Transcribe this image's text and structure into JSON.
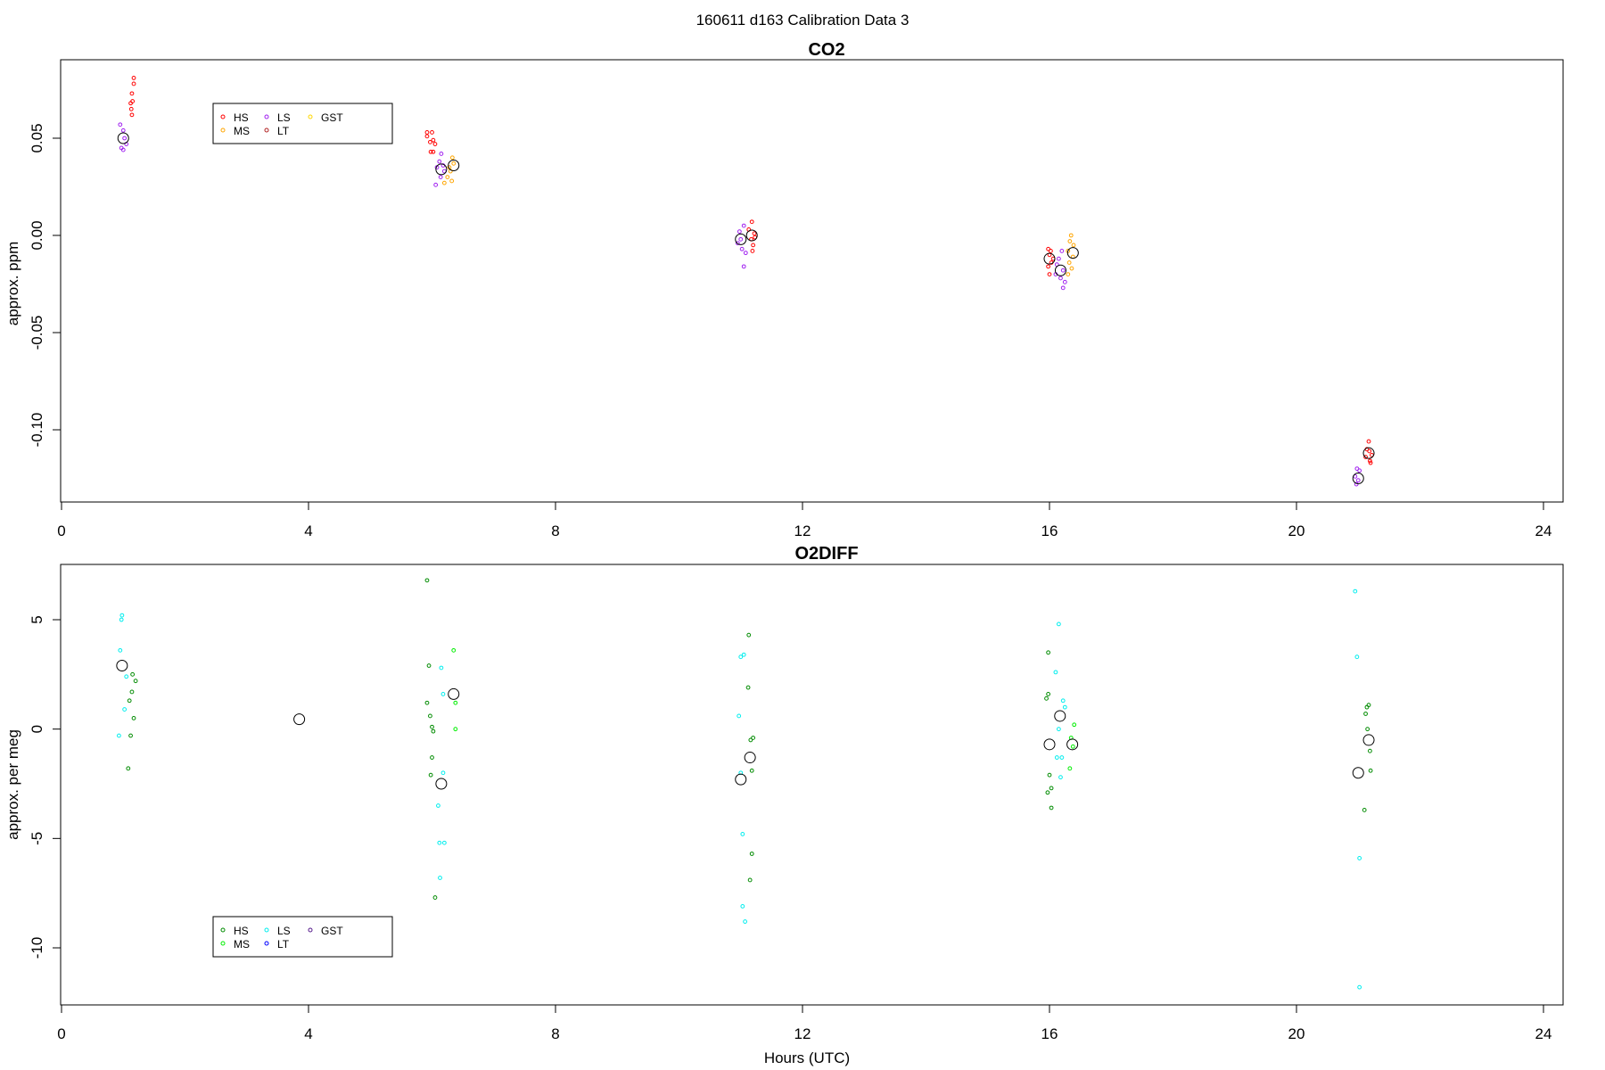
{
  "figure": {
    "title": "160611   d163   Calibration Data 3",
    "xlabel": "Hours (UTC)"
  },
  "chart_data": [
    {
      "type": "scatter",
      "title": "CO2",
      "xlabel": "",
      "ylabel": "approx. ppm",
      "xlim": [
        0,
        24
      ],
      "ylim": [
        -0.137,
        0.091
      ],
      "xticks": [
        "0",
        "4",
        "8",
        "12",
        "16",
        "20",
        "24"
      ],
      "yticks": [
        "0.05",
        "0.00",
        "-0.05",
        "-0.10"
      ],
      "legend": {
        "placement": "top-left",
        "columns": [
          [
            "HS",
            "MS"
          ],
          [
            "LS",
            "LT"
          ],
          [
            "GST"
          ]
        ]
      },
      "series": [
        {
          "name": "HS",
          "color": "#ff0000",
          "points": [
            [
              1.17,
              0.081
            ],
            [
              1.17,
              0.078
            ],
            [
              1.14,
              0.073
            ],
            [
              1.15,
              0.069
            ],
            [
              1.12,
              0.068
            ],
            [
              1.13,
              0.065
            ],
            [
              1.14,
              0.062
            ],
            [
              5.92,
              0.053
            ],
            [
              6.0,
              0.053
            ],
            [
              5.92,
              0.051
            ],
            [
              6.02,
              0.049
            ],
            [
              5.97,
              0.048
            ],
            [
              6.05,
              0.047
            ],
            [
              5.98,
              0.043
            ],
            [
              6.02,
              0.043
            ],
            [
              11.18,
              0.007
            ],
            [
              11.13,
              0.003
            ],
            [
              11.22,
              0.001
            ],
            [
              11.23,
              -0.001
            ],
            [
              11.17,
              -0.002
            ],
            [
              11.2,
              -0.005
            ],
            [
              11.19,
              -0.008
            ],
            [
              15.98,
              -0.007
            ],
            [
              16.02,
              -0.008
            ],
            [
              16.0,
              -0.01
            ],
            [
              16.06,
              -0.012
            ],
            [
              16.03,
              -0.014
            ],
            [
              15.98,
              -0.016
            ],
            [
              16.0,
              -0.02
            ],
            [
              21.17,
              -0.106
            ],
            [
              21.14,
              -0.11
            ],
            [
              21.18,
              -0.111
            ],
            [
              21.22,
              -0.113
            ],
            [
              21.12,
              -0.114
            ],
            [
              21.19,
              -0.116
            ],
            [
              21.2,
              -0.117
            ]
          ]
        },
        {
          "name": "MS",
          "color": "#ffa500",
          "points": [
            [
              6.33,
              0.04
            ],
            [
              6.35,
              0.037
            ],
            [
              6.28,
              0.035
            ],
            [
              6.3,
              0.033
            ],
            [
              6.25,
              0.03
            ],
            [
              6.32,
              0.028
            ],
            [
              6.2,
              0.027
            ],
            [
              16.35,
              0.0
            ],
            [
              16.33,
              -0.003
            ],
            [
              16.39,
              -0.005
            ],
            [
              16.3,
              -0.008
            ],
            [
              16.38,
              -0.011
            ],
            [
              16.32,
              -0.014
            ],
            [
              16.36,
              -0.017
            ],
            [
              16.3,
              -0.02
            ]
          ]
        },
        {
          "name": "LS",
          "color": "#a020f0",
          "points": [
            [
              0.95,
              0.057
            ],
            [
              1.0,
              0.054
            ],
            [
              1.02,
              0.05
            ],
            [
              1.05,
              0.047
            ],
            [
              0.97,
              0.045
            ],
            [
              1.0,
              0.044
            ],
            [
              6.15,
              0.042
            ],
            [
              6.12,
              0.038
            ],
            [
              6.18,
              0.036
            ],
            [
              6.08,
              0.035
            ],
            [
              6.2,
              0.033
            ],
            [
              6.14,
              0.03
            ],
            [
              6.06,
              0.026
            ],
            [
              11.05,
              0.005
            ],
            [
              10.98,
              0.002
            ],
            [
              11.0,
              -0.002
            ],
            [
              10.95,
              -0.004
            ],
            [
              11.02,
              -0.007
            ],
            [
              11.08,
              -0.009
            ],
            [
              11.05,
              -0.016
            ],
            [
              16.2,
              -0.008
            ],
            [
              16.15,
              -0.012
            ],
            [
              16.12,
              -0.015
            ],
            [
              16.22,
              -0.018
            ],
            [
              16.1,
              -0.02
            ],
            [
              16.18,
              -0.022
            ],
            [
              16.25,
              -0.024
            ],
            [
              16.22,
              -0.027
            ],
            [
              20.98,
              -0.12
            ],
            [
              21.02,
              -0.121
            ],
            [
              20.95,
              -0.124
            ],
            [
              21.0,
              -0.126
            ],
            [
              20.97,
              -0.128
            ]
          ]
        },
        {
          "name": "LT",
          "color": "#b22222",
          "points": []
        },
        {
          "name": "GST",
          "color": "#ffd700",
          "points": []
        }
      ],
      "means": [
        [
          1.0,
          0.05
        ],
        [
          6.15,
          0.034
        ],
        [
          6.35,
          0.036
        ],
        [
          11.0,
          -0.002
        ],
        [
          11.18,
          0.0
        ],
        [
          16.0,
          -0.012
        ],
        [
          16.18,
          -0.018
        ],
        [
          16.38,
          -0.009
        ],
        [
          21.0,
          -0.125
        ],
        [
          21.17,
          -0.112
        ]
      ]
    },
    {
      "type": "scatter",
      "title": "O2DIFF",
      "xlabel": "Hours (UTC)",
      "ylabel": "approx. per meg",
      "xlim": [
        0,
        24
      ],
      "ylim": [
        -12.6,
        7.5
      ],
      "xticks": [
        "0",
        "4",
        "8",
        "12",
        "16",
        "20",
        "24"
      ],
      "yticks": [
        "5",
        "0",
        "-5",
        "-10"
      ],
      "legend": {
        "placement": "bottom-left",
        "columns": [
          [
            "HS",
            "MS"
          ],
          [
            "LS",
            "LT"
          ],
          [
            "GST"
          ]
        ]
      },
      "series": [
        {
          "name": "HS",
          "color": "#008b00",
          "points": [
            [
              1.15,
              2.5
            ],
            [
              1.2,
              2.2
            ],
            [
              1.14,
              1.7
            ],
            [
              1.1,
              1.3
            ],
            [
              1.17,
              0.5
            ],
            [
              1.12,
              -0.3
            ],
            [
              1.08,
              -1.8
            ],
            [
              5.92,
              6.8
            ],
            [
              5.95,
              2.9
            ],
            [
              5.92,
              1.2
            ],
            [
              5.97,
              0.6
            ],
            [
              6.0,
              0.1
            ],
            [
              6.02,
              -0.1
            ],
            [
              6.0,
              -1.3
            ],
            [
              5.98,
              -2.1
            ],
            [
              6.05,
              -7.7
            ],
            [
              11.13,
              4.3
            ],
            [
              11.12,
              1.9
            ],
            [
              11.2,
              -0.4
            ],
            [
              11.16,
              -0.5
            ],
            [
              11.18,
              -1.9
            ],
            [
              11.18,
              -5.7
            ],
            [
              11.15,
              -6.9
            ],
            [
              15.98,
              3.5
            ],
            [
              15.98,
              1.6
            ],
            [
              15.95,
              1.4
            ],
            [
              16.0,
              -2.1
            ],
            [
              16.03,
              -2.7
            ],
            [
              15.97,
              -2.9
            ],
            [
              16.03,
              -3.6
            ],
            [
              21.17,
              1.1
            ],
            [
              21.14,
              1.0
            ],
            [
              21.12,
              0.7
            ],
            [
              21.15,
              0.0
            ],
            [
              21.19,
              -1.0
            ],
            [
              21.2,
              -1.9
            ],
            [
              21.1,
              -3.7
            ]
          ]
        },
        {
          "name": "MS",
          "color": "#00ee00",
          "points": [
            [
              6.35,
              3.6
            ],
            [
              6.38,
              1.2
            ],
            [
              6.38,
              0.0
            ],
            [
              16.4,
              0.2
            ],
            [
              16.35,
              -0.4
            ],
            [
              16.38,
              -0.8
            ],
            [
              16.33,
              -1.8
            ]
          ]
        },
        {
          "name": "LS",
          "color": "#00eeee",
          "points": [
            [
              0.98,
              5.2
            ],
            [
              0.97,
              5.0
            ],
            [
              0.95,
              3.6
            ],
            [
              1.05,
              2.4
            ],
            [
              1.02,
              0.9
            ],
            [
              0.93,
              -0.3
            ],
            [
              6.15,
              2.8
            ],
            [
              6.18,
              1.6
            ],
            [
              6.18,
              -2.0
            ],
            [
              6.1,
              -3.5
            ],
            [
              6.12,
              -5.2
            ],
            [
              6.2,
              -5.2
            ],
            [
              6.13,
              -6.8
            ],
            [
              11.0,
              3.3
            ],
            [
              11.05,
              3.4
            ],
            [
              10.97,
              0.6
            ],
            [
              11.0,
              -2.0
            ],
            [
              11.03,
              -4.8
            ],
            [
              11.03,
              -8.1
            ],
            [
              11.07,
              -8.8
            ],
            [
              16.15,
              4.8
            ],
            [
              16.1,
              2.6
            ],
            [
              16.22,
              1.3
            ],
            [
              16.25,
              1.0
            ],
            [
              16.15,
              0.0
            ],
            [
              16.12,
              -1.3
            ],
            [
              16.2,
              -1.3
            ],
            [
              16.18,
              -2.2
            ],
            [
              20.95,
              6.3
            ],
            [
              20.98,
              3.3
            ],
            [
              21.02,
              -5.9
            ],
            [
              21.02,
              -11.8
            ]
          ]
        },
        {
          "name": "LT",
          "color": "#0000ff",
          "points": []
        },
        {
          "name": "GST",
          "color": "#551a8b",
          "points": []
        }
      ],
      "means": [
        [
          0.98,
          2.9
        ],
        [
          3.85,
          0.45
        ],
        [
          6.35,
          1.6
        ],
        [
          6.15,
          -2.5
        ],
        [
          11.15,
          -1.3
        ],
        [
          11.0,
          -2.3
        ],
        [
          16.17,
          0.6
        ],
        [
          16.0,
          -0.7
        ],
        [
          16.37,
          -0.7
        ],
        [
          21.17,
          -0.5
        ],
        [
          21.0,
          -2.0
        ]
      ]
    }
  ]
}
